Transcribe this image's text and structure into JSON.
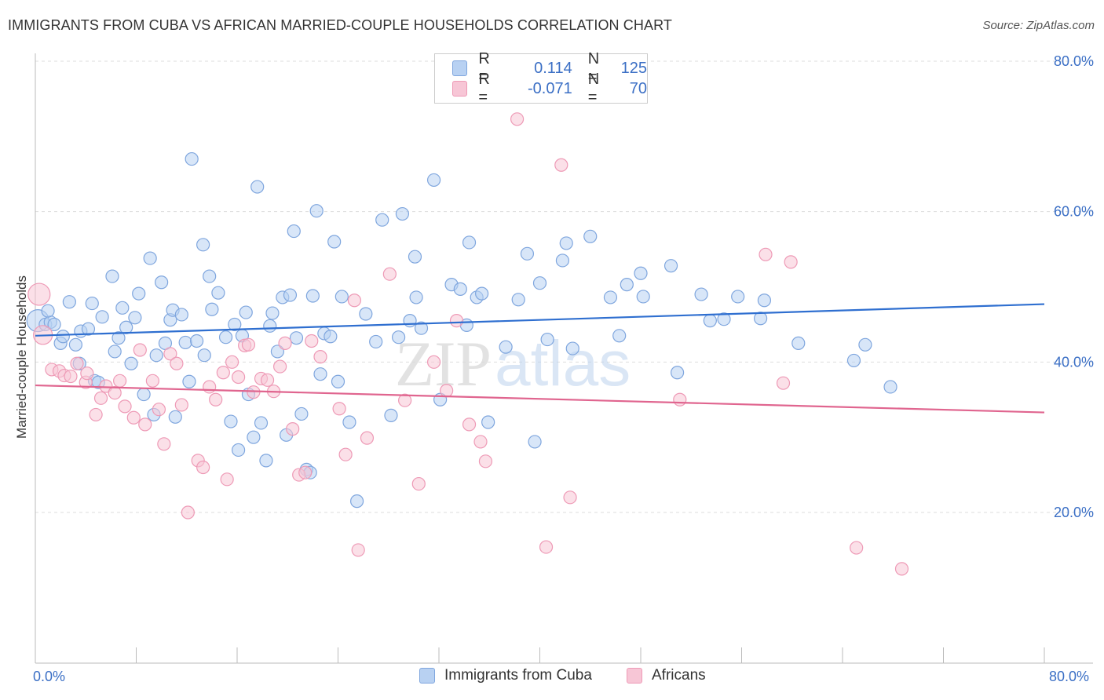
{
  "title": "IMMIGRANTS FROM CUBA VS AFRICAN MARRIED-COUPLE HOUSEHOLDS CORRELATION CHART",
  "source": "Source: ZipAtlas.com",
  "watermark": "ZIPatlas",
  "colors": {
    "blue_fill": "#b8d1f2",
    "blue_stroke": "#7fa6de",
    "blue_line": "#2f6fd0",
    "pink_fill": "#f7c6d6",
    "pink_stroke": "#ee9ab6",
    "pink_line": "#e0658f",
    "tick_text": "#3b6fc5",
    "grid": "#dddddd"
  },
  "legend_top": {
    "rows": [
      {
        "r_label": "R =",
        "r_value": "0.114",
        "n_label": "N =",
        "n_value": "125"
      },
      {
        "r_label": "R =",
        "r_value": "-0.071",
        "n_label": "N =",
        "n_value": "70"
      }
    ]
  },
  "legend_bottom": {
    "items": [
      {
        "label": "Immigrants from Cuba"
      },
      {
        "label": "Africans"
      }
    ]
  },
  "chart_data": {
    "type": "scatter",
    "title": "IMMIGRANTS FROM CUBA VS AFRICAN MARRIED-COUPLE HOUSEHOLDS CORRELATION CHART",
    "xlabel": "",
    "ylabel": "Married-couple Households",
    "xlim": [
      0,
      80
    ],
    "ylim": [
      0,
      82
    ],
    "x_tick_labels": [
      "0.0%",
      "80.0%"
    ],
    "y_ticks": [
      {
        "value": 20,
        "label": "20.0%"
      },
      {
        "value": 40,
        "label": "40.0%"
      },
      {
        "value": 60,
        "label": "60.0%"
      },
      {
        "value": 80,
        "label": "80.0%"
      }
    ],
    "grid": true,
    "legend_position": "top-center",
    "series": [
      {
        "name": "Immigrants from Cuba",
        "color": "blue",
        "R": 0.114,
        "N": 125,
        "trend": {
          "x": [
            0,
            80
          ],
          "y": [
            43.5,
            47.7
          ]
        },
        "points": [
          [
            0.2,
            45.5
          ],
          [
            0.8,
            45.0
          ],
          [
            1.2,
            45.3
          ],
          [
            1.0,
            46.8
          ],
          [
            1.5,
            45.0
          ],
          [
            2.0,
            42.5
          ],
          [
            2.2,
            43.4
          ],
          [
            2.7,
            48.0
          ],
          [
            3.2,
            42.3
          ],
          [
            3.5,
            39.8
          ],
          [
            3.6,
            44.1
          ],
          [
            4.2,
            44.4
          ],
          [
            4.5,
            47.8
          ],
          [
            4.7,
            37.5
          ],
          [
            5.0,
            37.3
          ],
          [
            5.3,
            46.0
          ],
          [
            6.1,
            51.4
          ],
          [
            6.3,
            41.4
          ],
          [
            6.6,
            43.2
          ],
          [
            6.9,
            47.2
          ],
          [
            7.2,
            44.6
          ],
          [
            7.6,
            39.8
          ],
          [
            7.9,
            45.9
          ],
          [
            8.2,
            49.1
          ],
          [
            8.6,
            35.7
          ],
          [
            9.1,
            53.8
          ],
          [
            9.4,
            33.0
          ],
          [
            9.6,
            40.9
          ],
          [
            10.0,
            50.6
          ],
          [
            10.3,
            42.5
          ],
          [
            10.7,
            45.6
          ],
          [
            10.9,
            46.9
          ],
          [
            11.1,
            32.7
          ],
          [
            11.6,
            46.3
          ],
          [
            11.9,
            42.6
          ],
          [
            12.2,
            37.4
          ],
          [
            12.4,
            67.0
          ],
          [
            12.8,
            42.8
          ],
          [
            13.3,
            55.6
          ],
          [
            13.4,
            40.9
          ],
          [
            13.8,
            51.4
          ],
          [
            14.0,
            47.0
          ],
          [
            14.5,
            49.2
          ],
          [
            15.1,
            43.3
          ],
          [
            15.5,
            32.1
          ],
          [
            15.8,
            45.0
          ],
          [
            16.1,
            28.3
          ],
          [
            16.4,
            43.5
          ],
          [
            16.7,
            46.6
          ],
          [
            16.9,
            35.7
          ],
          [
            17.3,
            30.0
          ],
          [
            17.6,
            63.3
          ],
          [
            17.9,
            31.9
          ],
          [
            18.3,
            26.9
          ],
          [
            18.6,
            44.8
          ],
          [
            18.8,
            46.5
          ],
          [
            19.2,
            41.4
          ],
          [
            19.6,
            48.6
          ],
          [
            19.9,
            30.3
          ],
          [
            20.2,
            48.9
          ],
          [
            20.5,
            57.4
          ],
          [
            20.7,
            43.2
          ],
          [
            21.1,
            33.1
          ],
          [
            21.5,
            25.7
          ],
          [
            21.8,
            25.3
          ],
          [
            22.0,
            48.8
          ],
          [
            22.3,
            60.1
          ],
          [
            22.6,
            38.4
          ],
          [
            22.9,
            43.8
          ],
          [
            23.4,
            43.4
          ],
          [
            23.7,
            56.0
          ],
          [
            24.0,
            37.4
          ],
          [
            24.3,
            48.7
          ],
          [
            24.9,
            32.0
          ],
          [
            26.2,
            46.4
          ],
          [
            25.5,
            21.5
          ],
          [
            27.0,
            42.7
          ],
          [
            27.5,
            58.9
          ],
          [
            28.2,
            32.9
          ],
          [
            28.8,
            43.3
          ],
          [
            29.1,
            59.7
          ],
          [
            29.7,
            45.5
          ],
          [
            30.1,
            54.0
          ],
          [
            30.2,
            48.6
          ],
          [
            30.6,
            44.5
          ],
          [
            31.6,
            64.2
          ],
          [
            32.1,
            35.0
          ],
          [
            33.0,
            50.3
          ],
          [
            33.7,
            49.7
          ],
          [
            34.2,
            44.9
          ],
          [
            34.4,
            55.9
          ],
          [
            35.0,
            48.6
          ],
          [
            35.4,
            49.1
          ],
          [
            35.9,
            32.0
          ],
          [
            37.3,
            42.0
          ],
          [
            38.3,
            48.3
          ],
          [
            39.0,
            54.4
          ],
          [
            39.6,
            29.4
          ],
          [
            40.0,
            50.5
          ],
          [
            40.6,
            43.0
          ],
          [
            41.8,
            53.5
          ],
          [
            42.1,
            55.8
          ],
          [
            42.6,
            41.8
          ],
          [
            44.0,
            56.7
          ],
          [
            45.6,
            48.6
          ],
          [
            46.3,
            43.5
          ],
          [
            46.9,
            50.3
          ],
          [
            48.0,
            51.8
          ],
          [
            48.2,
            48.7
          ],
          [
            50.4,
            52.8
          ],
          [
            50.9,
            38.6
          ],
          [
            52.8,
            49.0
          ],
          [
            53.5,
            45.5
          ],
          [
            54.6,
            45.7
          ],
          [
            55.7,
            48.7
          ],
          [
            57.5,
            45.8
          ],
          [
            57.8,
            48.2
          ],
          [
            60.5,
            42.5
          ],
          [
            64.9,
            40.2
          ],
          [
            65.8,
            42.3
          ],
          [
            67.8,
            36.7
          ]
        ]
      },
      {
        "name": "Africans",
        "color": "pink",
        "R": -0.071,
        "N": 70,
        "trend": {
          "x": [
            0,
            80
          ],
          "y": [
            36.9,
            33.3
          ]
        },
        "points": [
          [
            0.3,
            49.0
          ],
          [
            0.6,
            43.6
          ],
          [
            1.3,
            39.0
          ],
          [
            1.9,
            38.8
          ],
          [
            2.3,
            38.2
          ],
          [
            2.8,
            38.1
          ],
          [
            3.3,
            39.8
          ],
          [
            4.0,
            37.3
          ],
          [
            4.1,
            38.5
          ],
          [
            4.8,
            33.0
          ],
          [
            5.2,
            35.2
          ],
          [
            5.6,
            36.8
          ],
          [
            6.3,
            35.9
          ],
          [
            6.7,
            37.5
          ],
          [
            7.1,
            34.1
          ],
          [
            7.8,
            32.6
          ],
          [
            8.3,
            41.6
          ],
          [
            8.7,
            31.7
          ],
          [
            9.3,
            37.5
          ],
          [
            9.8,
            33.7
          ],
          [
            10.2,
            29.1
          ],
          [
            10.7,
            41.1
          ],
          [
            11.2,
            39.8
          ],
          [
            11.6,
            34.3
          ],
          [
            12.1,
            20.0
          ],
          [
            12.9,
            26.9
          ],
          [
            13.3,
            26.0
          ],
          [
            13.8,
            36.7
          ],
          [
            14.3,
            35.0
          ],
          [
            14.9,
            38.6
          ],
          [
            15.2,
            24.4
          ],
          [
            15.6,
            40.0
          ],
          [
            16.1,
            38.0
          ],
          [
            16.6,
            42.2
          ],
          [
            16.9,
            42.3
          ],
          [
            17.3,
            36.0
          ],
          [
            17.9,
            37.8
          ],
          [
            18.4,
            37.6
          ],
          [
            18.9,
            36.1
          ],
          [
            19.4,
            39.4
          ],
          [
            19.8,
            42.5
          ],
          [
            20.4,
            31.1
          ],
          [
            20.9,
            25.0
          ],
          [
            21.4,
            25.3
          ],
          [
            21.9,
            42.8
          ],
          [
            22.6,
            40.7
          ],
          [
            24.1,
            33.8
          ],
          [
            24.6,
            27.7
          ],
          [
            25.3,
            48.2
          ],
          [
            25.6,
            15.0
          ],
          [
            26.3,
            29.9
          ],
          [
            28.1,
            51.7
          ],
          [
            29.3,
            34.9
          ],
          [
            30.4,
            23.8
          ],
          [
            31.6,
            40.0
          ],
          [
            32.6,
            36.2
          ],
          [
            33.4,
            45.5
          ],
          [
            34.4,
            31.7
          ],
          [
            35.3,
            29.4
          ],
          [
            35.7,
            26.8
          ],
          [
            38.2,
            72.3
          ],
          [
            40.5,
            15.4
          ],
          [
            41.7,
            66.2
          ],
          [
            42.4,
            22.0
          ],
          [
            51.1,
            35.0
          ],
          [
            57.9,
            54.3
          ],
          [
            59.3,
            37.2
          ],
          [
            59.9,
            53.3
          ],
          [
            65.1,
            15.3
          ],
          [
            68.7,
            12.5
          ]
        ]
      }
    ]
  }
}
